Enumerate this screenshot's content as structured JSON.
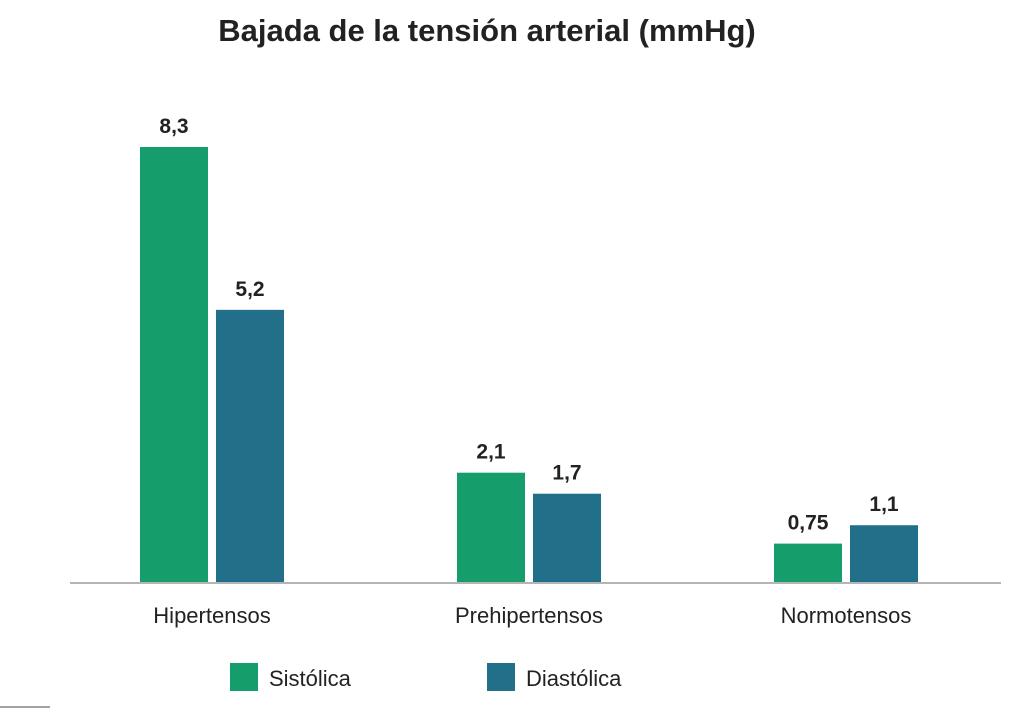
{
  "chart_data": {
    "type": "bar",
    "title": "Bajada de la tensión arterial (mmHg)",
    "xlabel": "",
    "ylabel": "",
    "categories": [
      "Hipertensos",
      "Prehipertensos",
      "Normotensos"
    ],
    "series": [
      {
        "name": "Sistólica",
        "color": "#159e6b",
        "values": [
          8.3,
          2.1,
          0.75
        ],
        "labels": [
          "8,3",
          "2,1",
          "0,75"
        ]
      },
      {
        "name": "Diastólica",
        "color": "#216f89",
        "values": [
          5.2,
          1.7,
          1.1
        ],
        "labels": [
          "5,2",
          "1,7",
          "1,1"
        ]
      }
    ],
    "ylim": [
      0,
      8.3
    ],
    "grid": false,
    "legend_position": "bottom"
  }
}
